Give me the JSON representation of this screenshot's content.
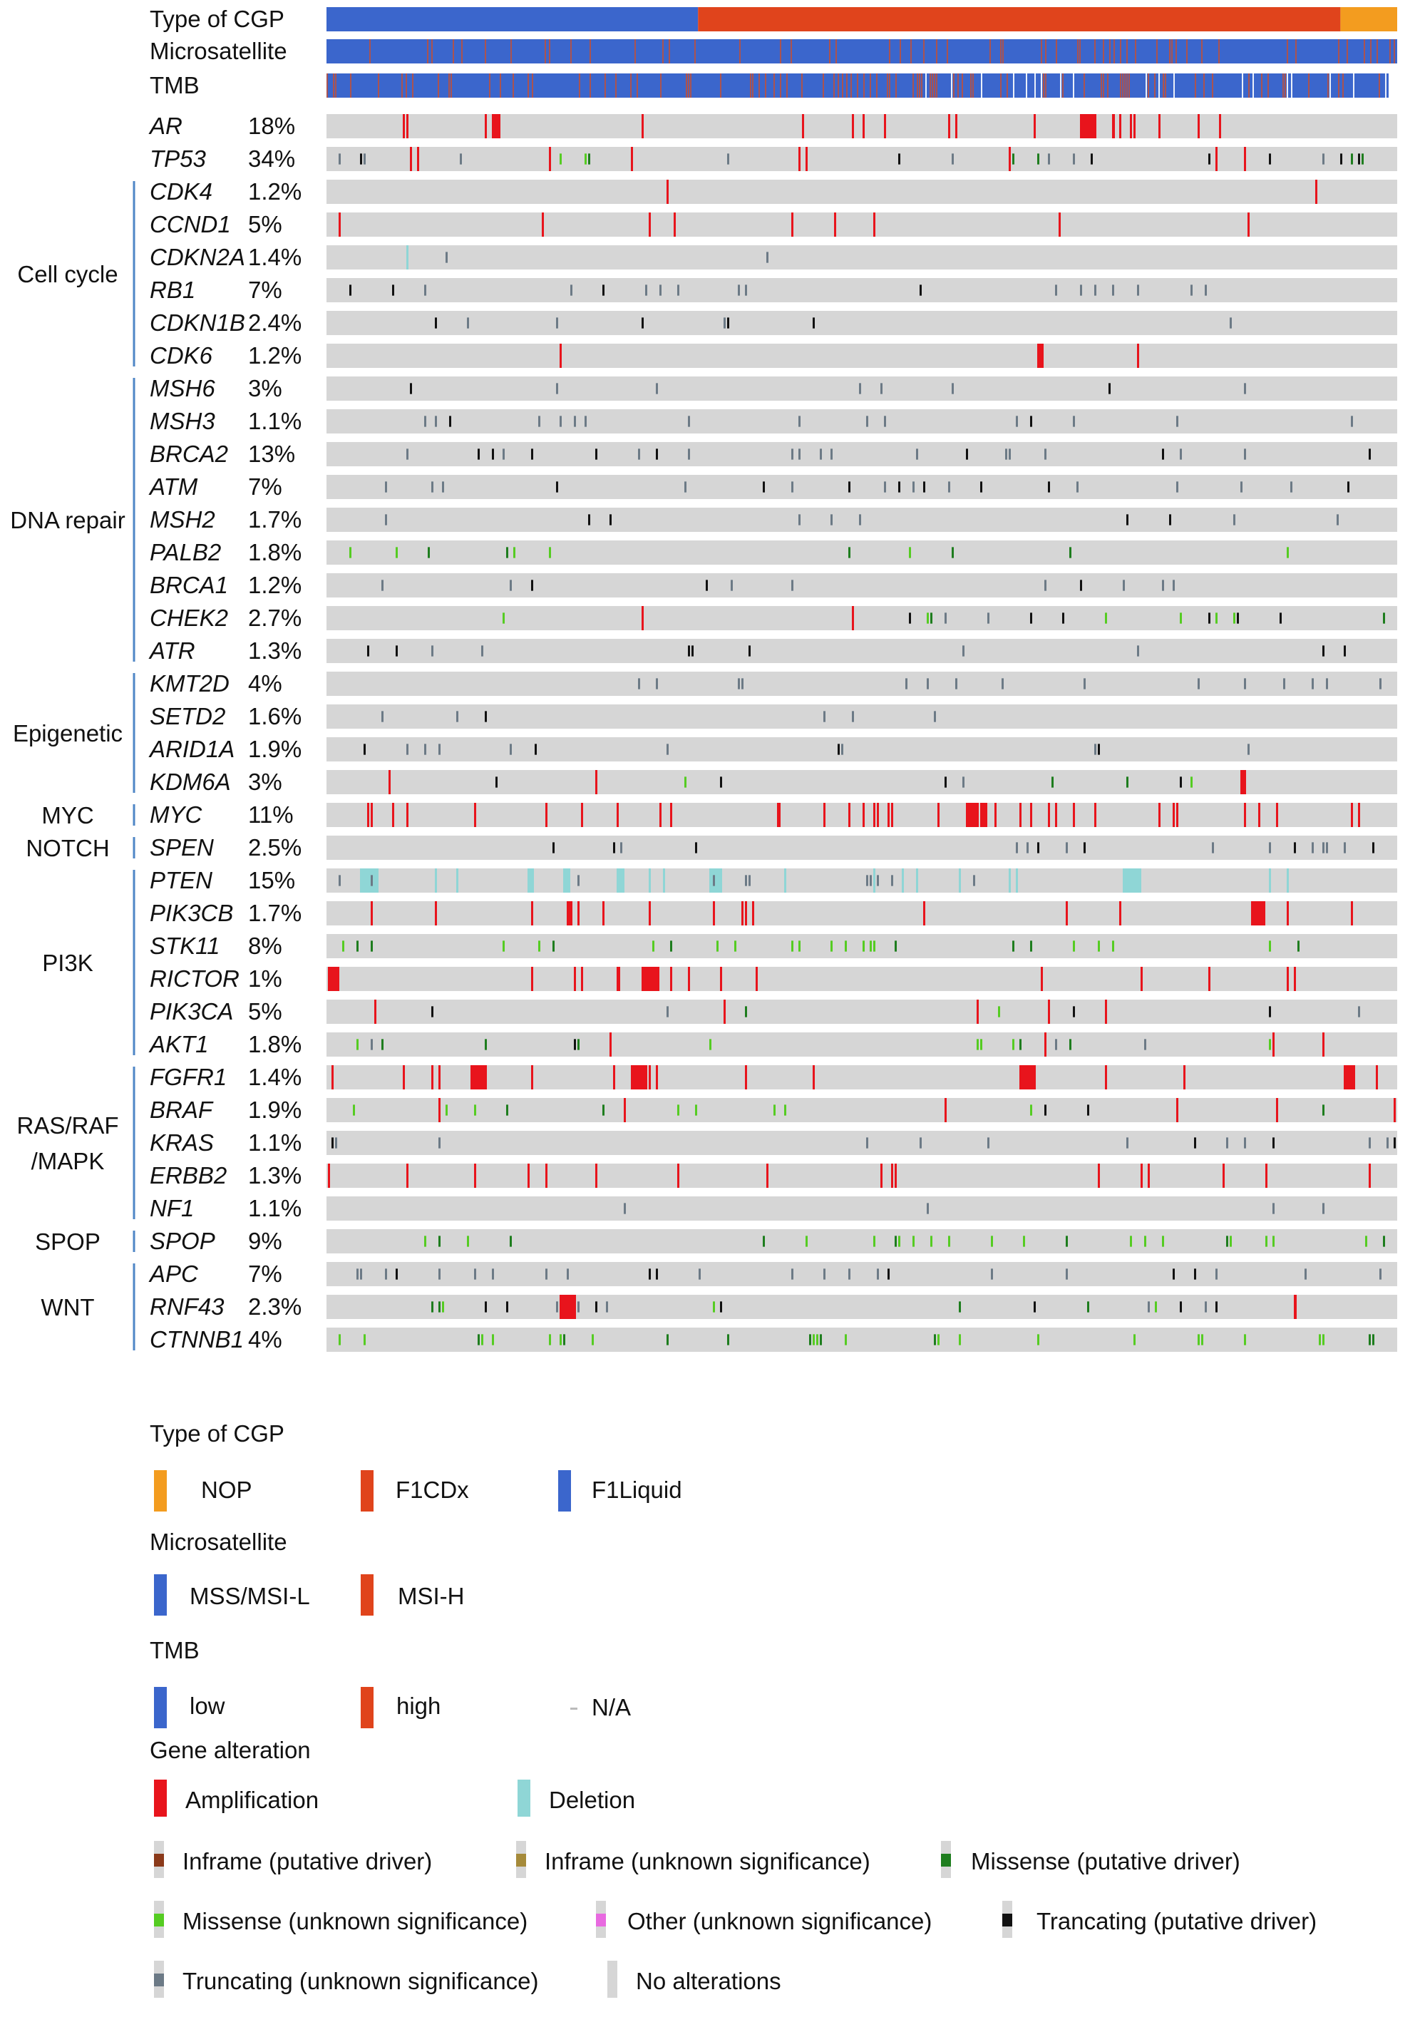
{
  "chart_data": {
    "type": "heatmap",
    "annotation_tracks": [
      {
        "label": "Type of CGP",
        "segments": [
          {
            "category": "F1Liquid",
            "fraction": 0.347
          },
          {
            "category": "F1CDx",
            "fraction": 0.6
          },
          {
            "category": "NOP",
            "fraction": 0.053
          }
        ]
      },
      {
        "label": "Microsatellite",
        "base": "MSS/MSI-L",
        "accent": "MSI-H",
        "accent_density": 0.12
      },
      {
        "label": "TMB",
        "base": "low",
        "accent": "high",
        "accent_density": 0.18,
        "na_density": 0.08
      }
    ],
    "gene_rows": [
      {
        "gene": "AR",
        "pct": "18%",
        "group": "",
        "density": 0.05,
        "palette": "amp"
      },
      {
        "gene": "TP53",
        "pct": "34%",
        "group": "",
        "density": 0.1,
        "palette": "mixed"
      },
      {
        "gene": "CDK4",
        "pct": "1.2%",
        "group": "Cell cycle",
        "density": 0.012,
        "palette": "amp"
      },
      {
        "gene": "CCND1",
        "pct": "5%",
        "group": "Cell cycle",
        "density": 0.03,
        "palette": "amp"
      },
      {
        "gene": "CDKN2A",
        "pct": "1.4%",
        "group": "Cell cycle",
        "density": 0.02,
        "palette": "del"
      },
      {
        "gene": "RB1",
        "pct": "7%",
        "group": "Cell cycle",
        "density": 0.05,
        "palette": "trunc"
      },
      {
        "gene": "CDKN1B",
        "pct": "2.4%",
        "group": "Cell cycle",
        "density": 0.03,
        "palette": "trunc"
      },
      {
        "gene": "CDK6",
        "pct": "1.2%",
        "group": "Cell cycle",
        "density": 0.015,
        "palette": "amp"
      },
      {
        "gene": "MSH6",
        "pct": "3%",
        "group": "DNA repair",
        "density": 0.04,
        "palette": "trunc"
      },
      {
        "gene": "MSH3",
        "pct": "1.1%",
        "group": "DNA repair",
        "density": 0.03,
        "palette": "trunc"
      },
      {
        "gene": "BRCA2",
        "pct": "13%",
        "group": "DNA repair",
        "density": 0.07,
        "palette": "trunc"
      },
      {
        "gene": "ATM",
        "pct": "7%",
        "group": "DNA repair",
        "density": 0.06,
        "palette": "trunc"
      },
      {
        "gene": "MSH2",
        "pct": "1.7%",
        "group": "DNA repair",
        "density": 0.03,
        "palette": "trunc"
      },
      {
        "gene": "PALB2",
        "pct": "1.8%",
        "group": "DNA repair",
        "density": 0.03,
        "palette": "miss"
      },
      {
        "gene": "BRCA1",
        "pct": "1.2%",
        "group": "DNA repair",
        "density": 0.03,
        "palette": "trunc"
      },
      {
        "gene": "CHEK2",
        "pct": "2.7%",
        "group": "DNA repair",
        "density": 0.04,
        "palette": "mixed"
      },
      {
        "gene": "ATR",
        "pct": "1.3%",
        "group": "DNA repair",
        "density": 0.03,
        "palette": "trunc"
      },
      {
        "gene": "KMT2D",
        "pct": "4%",
        "group": "Epigenetic",
        "density": 0.05,
        "palette": "trunc"
      },
      {
        "gene": "SETD2",
        "pct": "1.6%",
        "group": "Epigenetic",
        "density": 0.03,
        "palette": "trunc"
      },
      {
        "gene": "ARID1A",
        "pct": "1.9%",
        "group": "Epigenetic",
        "density": 0.04,
        "palette": "trunc"
      },
      {
        "gene": "KDM6A",
        "pct": "3%",
        "group": "Epigenetic",
        "density": 0.05,
        "palette": "mixed"
      },
      {
        "gene": "MYC",
        "pct": "11%",
        "group": "MYC",
        "density": 0.1,
        "palette": "amp"
      },
      {
        "gene": "SPEN",
        "pct": "2.5%",
        "group": "NOTCH",
        "density": 0.05,
        "palette": "trunc"
      },
      {
        "gene": "PTEN",
        "pct": "15%",
        "group": "PI3K",
        "density": 0.1,
        "palette": "del"
      },
      {
        "gene": "PIK3CB",
        "pct": "1.7%",
        "group": "PI3K",
        "density": 0.04,
        "palette": "amp"
      },
      {
        "gene": "STK11",
        "pct": "8%",
        "group": "PI3K",
        "density": 0.07,
        "palette": "miss"
      },
      {
        "gene": "RICTOR",
        "pct": "1%",
        "group": "PI3K",
        "density": 0.03,
        "palette": "amp"
      },
      {
        "gene": "PIK3CA",
        "pct": "5%",
        "group": "PI3K",
        "density": 0.07,
        "palette": "mixed"
      },
      {
        "gene": "AKT1",
        "pct": "1.8%",
        "group": "PI3K",
        "density": 0.05,
        "palette": "mixed"
      },
      {
        "gene": "FGFR1",
        "pct": "1.4%",
        "group": "RAS/RAF/MAPK",
        "density": 0.05,
        "palette": "amp"
      },
      {
        "gene": "BRAF",
        "pct": "1.9%",
        "group": "RAS/RAF/MAPK",
        "density": 0.05,
        "palette": "mixed"
      },
      {
        "gene": "KRAS",
        "pct": "1.1%",
        "group": "RAS/RAF/MAPK",
        "density": 0.04,
        "palette": "trunc"
      },
      {
        "gene": "ERBB2",
        "pct": "1.3%",
        "group": "RAS/RAF/MAPK",
        "density": 0.04,
        "palette": "amp"
      },
      {
        "gene": "NF1",
        "pct": "1.1%",
        "group": "RAS/RAF/MAPK",
        "density": 0.02,
        "palette": "trunc"
      },
      {
        "gene": "SPOP",
        "pct": "9%",
        "group": "SPOP",
        "density": 0.08,
        "palette": "miss"
      },
      {
        "gene": "APC",
        "pct": "7%",
        "group": "WNT",
        "density": 0.09,
        "palette": "trunc"
      },
      {
        "gene": "RNF43",
        "pct": "2.3%",
        "group": "WNT",
        "density": 0.05,
        "palette": "mixed"
      },
      {
        "gene": "CTNNB1",
        "pct": "4%",
        "group": "WNT",
        "density": 0.08,
        "palette": "miss"
      }
    ],
    "groups": [
      {
        "name": "Cell cycle",
        "lines": [
          "Cell cycle"
        ]
      },
      {
        "name": "DNA repair",
        "lines": [
          "DNA repair"
        ]
      },
      {
        "name": "Epigenetic",
        "lines": [
          "Epigenetic"
        ]
      },
      {
        "name": "MYC",
        "lines": [
          "MYC"
        ]
      },
      {
        "name": "NOTCH",
        "lines": [
          "NOTCH"
        ]
      },
      {
        "name": "PI3K",
        "lines": [
          "PI3K"
        ]
      },
      {
        "name": "RAS/RAF/MAPK",
        "lines": [
          "RAS/RAF",
          "/MAPK"
        ]
      },
      {
        "name": "SPOP",
        "lines": [
          "SPOP"
        ]
      },
      {
        "name": "WNT",
        "lines": [
          "WNT"
        ]
      }
    ]
  },
  "legend": {
    "cgp": {
      "title": "Type of CGP",
      "items": [
        {
          "label": "NOP",
          "color": "#F39C1F"
        },
        {
          "label": "F1CDx",
          "color": "#E0441C"
        },
        {
          "label": "F1Liquid",
          "color": "#3B66CC"
        }
      ]
    },
    "msi": {
      "title": "Microsatellite",
      "items": [
        {
          "label": "MSS/MSI-L",
          "color": "#3B66CC"
        },
        {
          "label": "MSI-H",
          "color": "#E0441C"
        }
      ]
    },
    "tmb": {
      "title": "TMB",
      "items": [
        {
          "label": "low",
          "color": "#3B66CC"
        },
        {
          "label": "high",
          "color": "#E0441C"
        },
        {
          "label": "N/A",
          "color": "#BBBBBB"
        }
      ]
    },
    "alt": {
      "title": "Gene alteration",
      "items": [
        {
          "label": "Amplification",
          "color": "#E8141C"
        },
        {
          "label": "Deletion",
          "color": "#8FD6D6"
        },
        {
          "label": "Inframe (putative driver)",
          "color": "#8B3A1A"
        },
        {
          "label": "Inframe (unknown significance)",
          "color": "#A58A3A"
        },
        {
          "label": "Missense (putative driver)",
          "color": "#1E7D1E"
        },
        {
          "label": "Missense (unknown significance)",
          "color": "#55CC22"
        },
        {
          "label": "Other (unknown significance)",
          "color": "#E86AE0"
        },
        {
          "label": "Trancating (putative driver)",
          "color": "#111111"
        },
        {
          "label": "Truncating (unknown significance)",
          "color": "#6C7A86"
        },
        {
          "label": "No alterations",
          "color": "#D6D6D6"
        }
      ]
    }
  },
  "colors": {
    "row_bg": "#D6D6D6",
    "amp": "#E8141C",
    "del": "#8FD6D6",
    "trunc_driver": "#111111",
    "trunc_unknown": "#6C7A86",
    "miss_driver": "#1E7D1E",
    "miss_unknown": "#55CC22",
    "bracket": "#4F86C6"
  }
}
